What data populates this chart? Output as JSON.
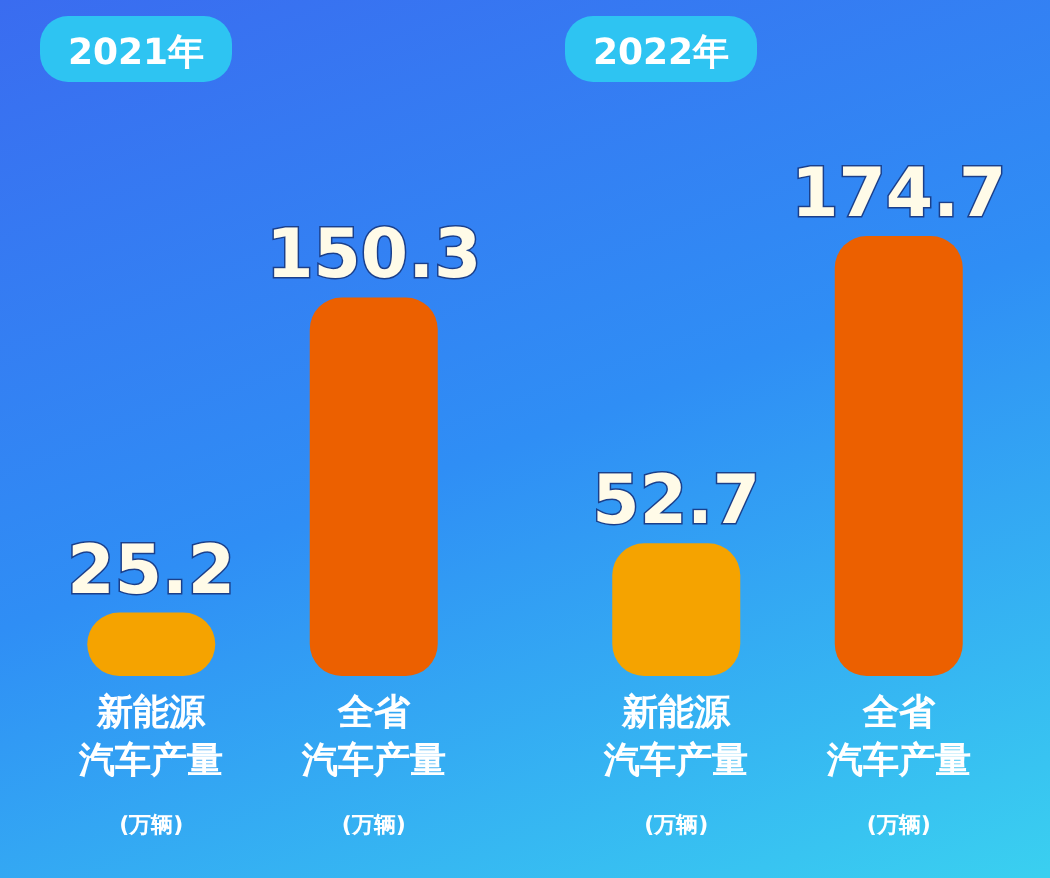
{
  "chart_data": [
    {
      "type": "bar",
      "title": "2021年",
      "categories": [
        "新能源汽车产量(万辆)",
        "全省汽车产量(万辆)"
      ],
      "values": [
        25.2,
        150.3
      ],
      "colors": [
        "#f5a300",
        "#ec6000"
      ],
      "data_labels": true
    },
    {
      "type": "bar",
      "title": "2022年",
      "categories": [
        "新能源汽车产量(万辆)",
        "全省汽车产量(万辆)"
      ],
      "values": [
        52.7,
        174.7
      ],
      "colors": [
        "#f5a300",
        "#ec6000"
      ],
      "data_labels": true
    }
  ]
}
